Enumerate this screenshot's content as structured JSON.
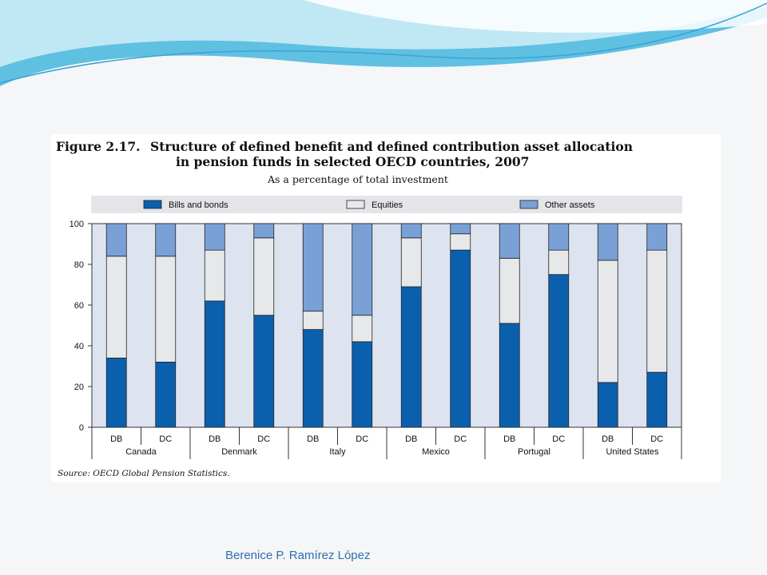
{
  "figure": {
    "number": "Figure 2.17.",
    "title_line1": "Structure of defined benefit and defined contribution asset allocation",
    "title_line2": "in pension funds in selected OECD countries, 2007",
    "subtitle": "As a percentage of total investment"
  },
  "source": {
    "label": "Source:",
    "text": "OECD Global Pension Statistics."
  },
  "author": "Berenice P. Ramírez López",
  "colors": {
    "bills_and_bonds": "#0b60ad",
    "equities": "#e7e8ea",
    "other_assets": "#7aa1d6",
    "plot_background": "#dde3ef",
    "legend_band": "#e4e5e8"
  },
  "chart_data": {
    "type": "bar",
    "stacked": true,
    "title": "Structure of defined benefit and defined contribution asset allocation in pension funds in selected OECD countries, 2007",
    "subtitle": "As a percentage of total investment",
    "ylim": [
      0,
      100
    ],
    "yticks": [
      "0",
      "20",
      "40",
      "60",
      "80",
      "100"
    ],
    "legend_position": "top",
    "groups": [
      "Canada",
      "Denmark",
      "Italy",
      "Mexico",
      "Portugal",
      "United States"
    ],
    "categories": [
      "DB",
      "DC",
      "DB",
      "DC",
      "DB",
      "DC",
      "DB",
      "DC",
      "DB",
      "DC",
      "DB",
      "DC"
    ],
    "series": [
      {
        "name": "Bills and bonds",
        "values": [
          34,
          32,
          62,
          55,
          48,
          42,
          69,
          87,
          51,
          75,
          22,
          27
        ]
      },
      {
        "name": "Equities",
        "values": [
          50,
          52,
          25,
          38,
          9,
          13,
          24,
          8,
          32,
          12,
          60,
          60
        ]
      },
      {
        "name": "Other assets",
        "values": [
          16,
          16,
          13,
          7,
          43,
          45,
          7,
          5,
          17,
          13,
          18,
          13
        ]
      }
    ]
  }
}
